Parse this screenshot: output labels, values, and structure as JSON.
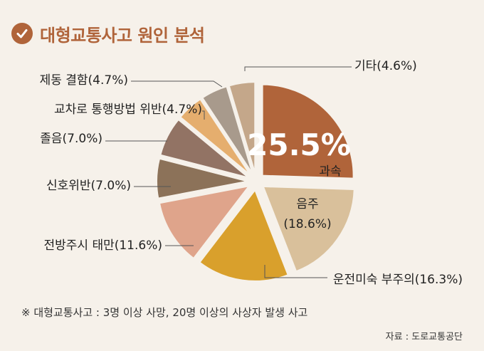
{
  "header": {
    "title": "대형교통사고 원인 분석",
    "icon": "check-circle-icon"
  },
  "chart_data": {
    "type": "pie",
    "title": "대형교통사고 원인 분석",
    "slices": [
      {
        "label": "과속",
        "value": 25.5,
        "display": "25.5%",
        "color": "#b0643a"
      },
      {
        "label": "음주",
        "value": 18.6,
        "display": "(18.6%)",
        "color": "#d9c09b"
      },
      {
        "label": "운전미숙 부주의",
        "value": 16.3,
        "display": "(16.3%)",
        "color": "#d9a02c"
      },
      {
        "label": "전방주시 태만",
        "value": 11.6,
        "display": "(11.6%)",
        "color": "#dfa48b"
      },
      {
        "label": "신호위반",
        "value": 7.0,
        "display": "(7.0%)",
        "color": "#8c7259"
      },
      {
        "label": "졸음",
        "value": 7.0,
        "display": "(7.0%)",
        "color": "#927364"
      },
      {
        "label": "교차로 통행방법 위반",
        "value": 4.7,
        "display": "(4.7%)",
        "color": "#e5ae6e"
      },
      {
        "label": "제동 결함",
        "value": 4.7,
        "display": "(4.7%)",
        "color": "#a89a8c"
      },
      {
        "label": "기타",
        "value": 4.6,
        "display": "(4.6%)",
        "color": "#c4a78a"
      }
    ]
  },
  "footnote": "※ 대형교통사고 : 3명 이상 사망, 20명 이상의 사상자 발생 사고",
  "source": "자료 : 도로교통공단"
}
